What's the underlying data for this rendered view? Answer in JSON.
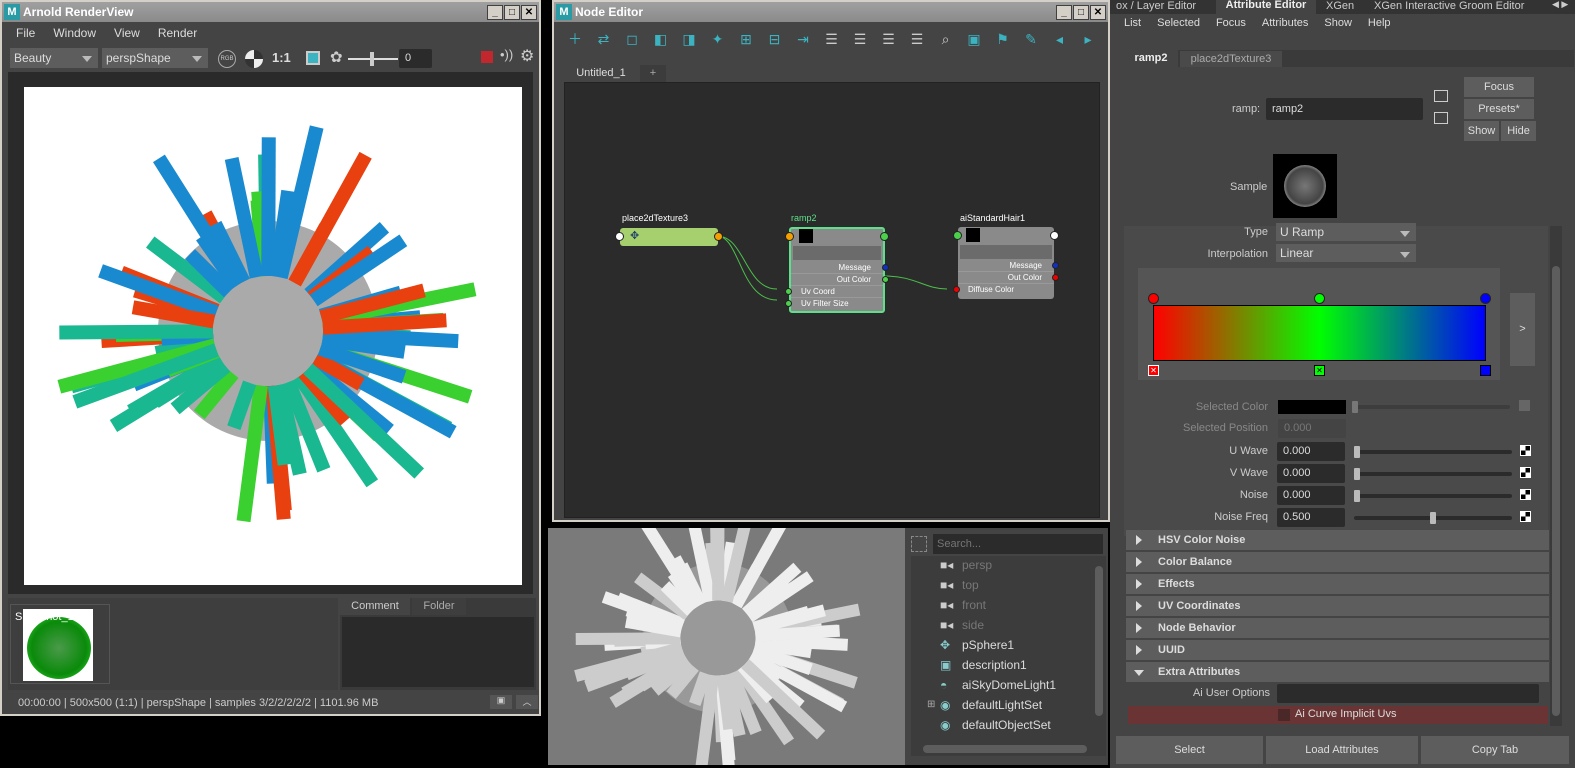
{
  "render_view": {
    "title": "Arnold RenderView",
    "menu": [
      "File",
      "Window",
      "View",
      "Render"
    ],
    "aov": "Beauty",
    "camera": "perspShape",
    "rgb": "RGB",
    "ratio": "1:1",
    "exposure": "0",
    "snapshot": "Snapshot_1",
    "tabs": [
      "Comment",
      "Folder"
    ],
    "status": "00:00:00 | 500x500 (1:1) | perspShape  | samples 3/2/2/2/2/2 | 1101.96 MB",
    "stop_color": "#c1272d"
  },
  "node_editor": {
    "title": "Node Editor",
    "tabs": [
      "Untitled_1",
      "+"
    ],
    "accent": "#3bb3c0",
    "nodes": {
      "place": {
        "name": "place2dTexture3",
        "color": "#a6cf6e"
      },
      "ramp": {
        "name": "ramp2",
        "ports": [
          "Message",
          "Out Color",
          "Uv Coord",
          "Uv Filter Size"
        ]
      },
      "hair": {
        "name": "aiStandardHair1",
        "ports": [
          "Message",
          "Out Color",
          "Diffuse Color"
        ]
      }
    }
  },
  "outliner": {
    "search_placeholder": "Search...",
    "items": [
      {
        "label": "persp",
        "icon": "camera-icon",
        "dim": true
      },
      {
        "label": "top",
        "icon": "camera-icon",
        "dim": true
      },
      {
        "label": "front",
        "icon": "camera-icon",
        "dim": true
      },
      {
        "label": "side",
        "icon": "camera-icon",
        "dim": true
      },
      {
        "label": "pSphere1",
        "icon": "transform-icon"
      },
      {
        "label": "description1",
        "icon": "xgen-description-icon"
      },
      {
        "label": "aiSkyDomeLight1",
        "icon": "skydome-icon"
      },
      {
        "label": "defaultLightSet",
        "icon": "set-icon",
        "expandable": true
      },
      {
        "label": "defaultObjectSet",
        "icon": "set-icon"
      }
    ]
  },
  "attribute_editor": {
    "top_tabs": [
      "ox / Layer Editor",
      "Attribute Editor",
      "XGen",
      "XGen Interactive Groom Editor"
    ],
    "menu": [
      "List",
      "Selected",
      "Focus",
      "Attributes",
      "Show",
      "Help"
    ],
    "node_tabs": [
      "ramp2",
      "place2dTexture3"
    ],
    "ramp_label": "ramp:",
    "ramp_value": "ramp2",
    "buttons": {
      "focus": "Focus",
      "presets": "Presets*",
      "show": "Show",
      "hide": "Hide"
    },
    "sample_label": "Sample",
    "type_label": "Type",
    "type_value": "U Ramp",
    "interp_label": "Interpolation",
    "interp_value": "Linear",
    "ramp_colors": [
      "#ff0000",
      "#00ff00",
      "#0000ff"
    ],
    "ramp_expand": ">",
    "selected_color_label": "Selected Color",
    "selected_position_label": "Selected Position",
    "selected_position": "0.000",
    "attrs": [
      {
        "label": "U Wave",
        "value": "0.000",
        "fraction": 0
      },
      {
        "label": "V Wave",
        "value": "0.000",
        "fraction": 0
      },
      {
        "label": "Noise",
        "value": "0.000",
        "fraction": 0
      },
      {
        "label": "Noise Freq",
        "value": "0.500",
        "fraction": 0.5
      }
    ],
    "sections": [
      "HSV Color Noise",
      "Color Balance",
      "Effects",
      "UV Coordinates",
      "Node Behavior",
      "UUID",
      "Extra Attributes"
    ],
    "ai_user_options": "Ai User Options",
    "ai_curve": "Ai Curve Implicit Uvs",
    "bottom": [
      "Select",
      "Load Attributes",
      "Copy Tab"
    ]
  }
}
